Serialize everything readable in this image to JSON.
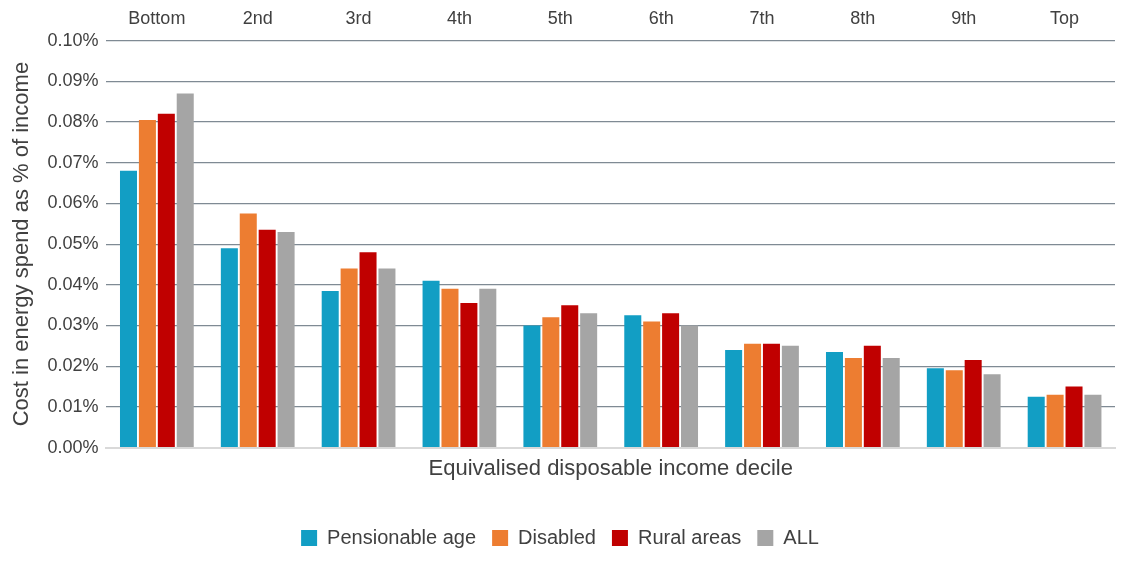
{
  "chart_data": {
    "type": "bar",
    "xlabel": "Equivalised disposable income decile",
    "ylabel": "Cost in energy spend as % of income",
    "categories": [
      "Bottom",
      "2nd",
      "3rd",
      "4th",
      "5th",
      "6th",
      "7th",
      "8th",
      "9th",
      "Top"
    ],
    "series": [
      {
        "name": "Pensionable age",
        "color": "#129ec4",
        "values": [
          0.068,
          0.049,
          0.0385,
          0.041,
          0.03,
          0.0325,
          0.024,
          0.0235,
          0.0195,
          0.0125
        ]
      },
      {
        "name": "Disabled",
        "color": "#ed7d31",
        "values": [
          0.0805,
          0.0575,
          0.044,
          0.039,
          0.032,
          0.031,
          0.0255,
          0.022,
          0.019,
          0.013
        ]
      },
      {
        "name": "Rural areas",
        "color": "#c00000",
        "values": [
          0.082,
          0.0535,
          0.048,
          0.0355,
          0.035,
          0.033,
          0.0255,
          0.025,
          0.0215,
          0.015
        ]
      },
      {
        "name": "ALL",
        "color": "#a5a5a5",
        "values": [
          0.087,
          0.053,
          0.044,
          0.039,
          0.033,
          0.03,
          0.025,
          0.022,
          0.018,
          0.013
        ]
      }
    ],
    "ylim": [
      0,
      0.1
    ],
    "yticks": [
      {
        "value": 0,
        "label": "0.00%"
      },
      {
        "value": 0.01,
        "label": "0.01%"
      },
      {
        "value": 0.02,
        "label": "0.02%"
      },
      {
        "value": 0.03,
        "label": "0.03%"
      },
      {
        "value": 0.04,
        "label": "0.04%"
      },
      {
        "value": 0.05,
        "label": "0.05%"
      },
      {
        "value": 0.06,
        "label": "0.06%"
      },
      {
        "value": 0.07,
        "label": "0.07%"
      },
      {
        "value": 0.08,
        "label": "0.08%"
      },
      {
        "value": 0.09,
        "label": "0.09%"
      },
      {
        "value": 0.1,
        "label": "0.10%"
      }
    ],
    "grid": "y",
    "legend": "bottom"
  }
}
